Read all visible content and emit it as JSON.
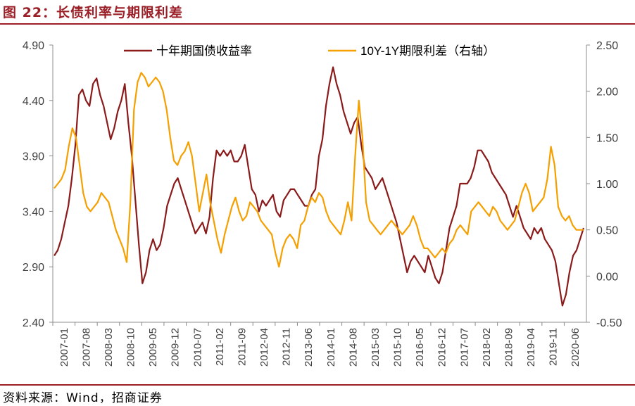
{
  "title": "图 22：长债利率与期限利差",
  "source": "资料来源：Wind，招商证券",
  "chart_data": {
    "type": "line",
    "x_tick_labels": [
      "2007-01",
      "2007-08",
      "2008-03",
      "2008-10",
      "2009-05",
      "2009-12",
      "2010-07",
      "2011-02",
      "2011-09",
      "2012-04",
      "2012-11",
      "2013-06",
      "2014-01",
      "2014-08",
      "2015-03",
      "2015-10",
      "2016-05",
      "2016-12",
      "2017-07",
      "2018-02",
      "2018-09",
      "2019-04",
      "2019-11",
      "2020-06"
    ],
    "left_axis": {
      "ylim": [
        2.4,
        4.9
      ],
      "ticks": [
        "2.40",
        "2.90",
        "3.40",
        "3.90",
        "4.40",
        "4.90"
      ]
    },
    "right_axis": {
      "ylim": [
        -0.5,
        2.5
      ],
      "ticks": [
        "-0.50",
        "0.00",
        "0.50",
        "1.00",
        "1.50",
        "2.00",
        "2.50"
      ]
    },
    "legend_position": "top",
    "series": [
      {
        "name": "十年期国债收益率",
        "axis": "left",
        "color": "#8b1a1a",
        "values": [
          3.0,
          3.05,
          3.15,
          3.3,
          3.45,
          3.7,
          4.0,
          4.45,
          4.5,
          4.4,
          4.35,
          4.55,
          4.6,
          4.45,
          4.35,
          4.2,
          4.05,
          4.15,
          4.3,
          4.4,
          4.55,
          4.2,
          3.9,
          3.5,
          3.1,
          2.75,
          2.85,
          3.05,
          3.15,
          3.05,
          3.1,
          3.25,
          3.45,
          3.55,
          3.65,
          3.7,
          3.6,
          3.5,
          3.4,
          3.3,
          3.2,
          3.25,
          3.3,
          3.2,
          3.35,
          3.7,
          3.95,
          3.9,
          3.95,
          3.9,
          3.95,
          3.85,
          3.85,
          3.9,
          4.0,
          3.8,
          3.6,
          3.55,
          3.4,
          3.5,
          3.45,
          3.5,
          3.55,
          3.4,
          3.35,
          3.5,
          3.55,
          3.6,
          3.6,
          3.55,
          3.5,
          3.45,
          3.45,
          3.55,
          3.6,
          3.9,
          4.05,
          4.35,
          4.55,
          4.7,
          4.55,
          4.45,
          4.3,
          4.2,
          4.1,
          4.2,
          4.25,
          4.0,
          3.8,
          3.75,
          3.7,
          3.6,
          3.65,
          3.7,
          3.6,
          3.5,
          3.4,
          3.3,
          3.15,
          3.0,
          2.85,
          2.95,
          3.0,
          2.95,
          2.9,
          2.85,
          3.0,
          2.9,
          2.8,
          2.75,
          2.85,
          3.05,
          3.25,
          3.35,
          3.45,
          3.65,
          3.65,
          3.65,
          3.7,
          3.8,
          3.95,
          3.95,
          3.9,
          3.85,
          3.75,
          3.7,
          3.65,
          3.6,
          3.55,
          3.45,
          3.35,
          3.45,
          3.35,
          3.25,
          3.2,
          3.15,
          3.25,
          3.2,
          3.25,
          3.15,
          3.1,
          3.05,
          2.95,
          2.75,
          2.55,
          2.65,
          2.85,
          3.0,
          3.05,
          3.15,
          3.25
        ]
      },
      {
        "name": "10Y-1Y期限利差（右轴）",
        "axis": "right",
        "color": "#f5a000",
        "values": [
          0.95,
          1.0,
          1.05,
          1.15,
          1.4,
          1.6,
          1.5,
          1.2,
          0.9,
          0.75,
          0.7,
          0.75,
          0.8,
          0.9,
          0.85,
          0.8,
          0.65,
          0.5,
          0.4,
          0.3,
          0.15,
          0.8,
          1.8,
          2.1,
          2.2,
          2.15,
          2.05,
          2.1,
          2.15,
          2.1,
          2.0,
          1.8,
          1.5,
          1.25,
          1.2,
          1.3,
          1.35,
          1.45,
          1.3,
          1.0,
          0.7,
          0.9,
          1.1,
          0.8,
          0.6,
          0.4,
          0.25,
          0.45,
          0.6,
          0.75,
          0.85,
          0.7,
          0.6,
          0.65,
          0.8,
          0.75,
          0.7,
          0.6,
          0.55,
          0.5,
          0.45,
          0.25,
          0.1,
          0.3,
          0.4,
          0.45,
          0.4,
          0.3,
          0.55,
          0.6,
          0.75,
          0.85,
          0.8,
          0.9,
          0.85,
          0.7,
          0.6,
          0.55,
          0.5,
          0.45,
          0.6,
          0.8,
          0.6,
          1.3,
          1.9,
          1.5,
          0.8,
          0.6,
          0.55,
          0.5,
          0.45,
          0.5,
          0.55,
          0.6,
          0.55,
          0.5,
          0.45,
          0.5,
          0.55,
          0.65,
          0.55,
          0.4,
          0.3,
          0.3,
          0.25,
          0.2,
          0.25,
          0.3,
          0.25,
          0.35,
          0.4,
          0.5,
          0.55,
          0.5,
          0.45,
          0.7,
          0.75,
          0.8,
          0.75,
          0.7,
          0.65,
          0.75,
          0.7,
          0.6,
          0.55,
          0.5,
          0.55,
          0.6,
          0.75,
          0.9,
          1.0,
          0.9,
          0.7,
          0.75,
          0.8,
          0.85,
          1.05,
          1.4,
          1.2,
          0.75,
          0.65,
          0.6,
          0.65,
          0.55,
          0.5,
          0.5,
          0.5
        ]
      }
    ]
  }
}
